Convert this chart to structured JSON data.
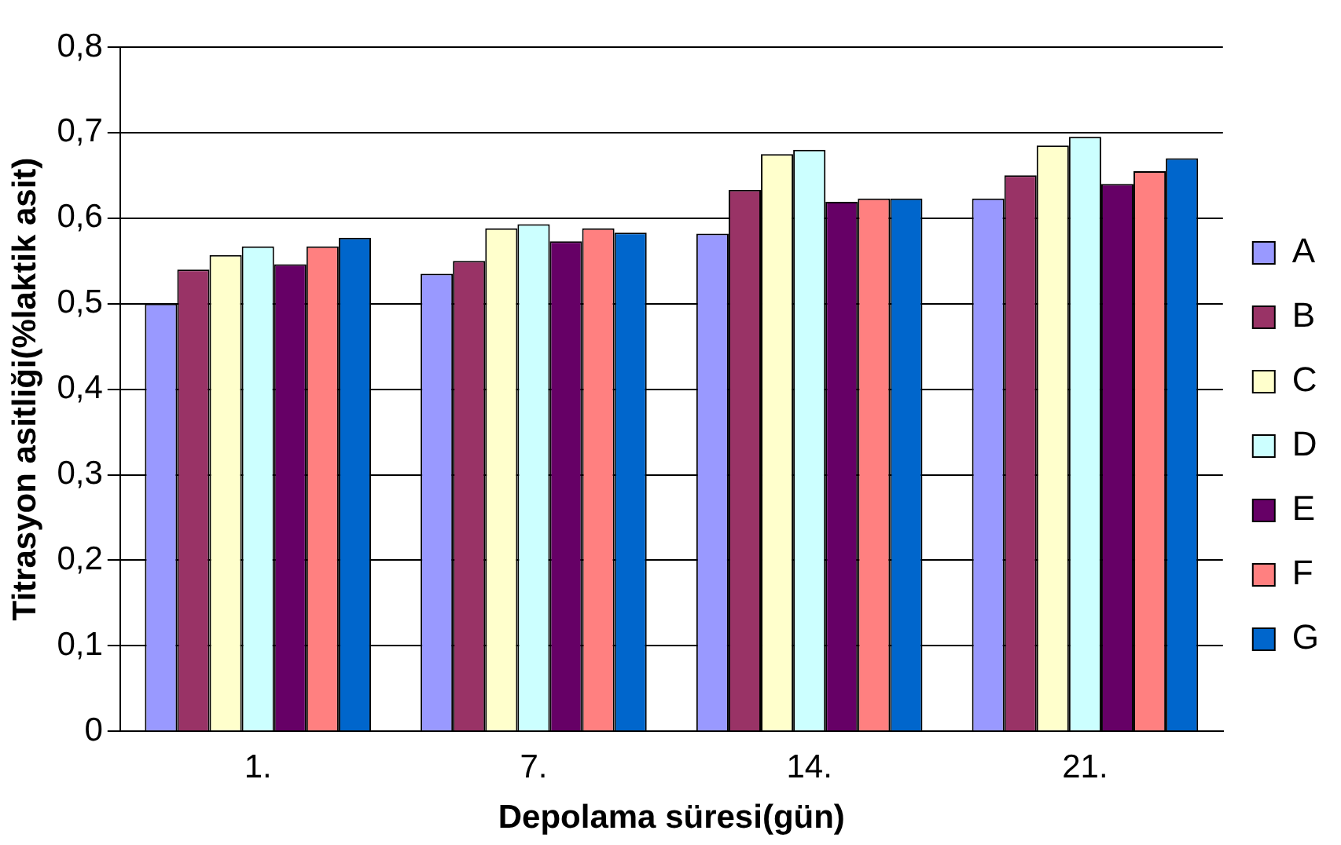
{
  "chart_data": {
    "type": "bar",
    "xlabel": "Depolama süresi(gün)",
    "ylabel": "Titrasyon asitliği(%laktik asit)",
    "categories": [
      "1.",
      "7.",
      "14.",
      "21."
    ],
    "series": [
      {
        "name": "A",
        "color": "#9999ff",
        "values": [
          0.5,
          0.535,
          0.582,
          0.623
        ]
      },
      {
        "name": "B",
        "color": "#993366",
        "values": [
          0.54,
          0.55,
          0.633,
          0.65
        ]
      },
      {
        "name": "C",
        "color": "#ffffcc",
        "values": [
          0.557,
          0.588,
          0.675,
          0.685
        ]
      },
      {
        "name": "D",
        "color": "#ccffff",
        "values": [
          0.567,
          0.593,
          0.68,
          0.695
        ]
      },
      {
        "name": "E",
        "color": "#660066",
        "values": [
          0.546,
          0.573,
          0.619,
          0.64
        ]
      },
      {
        "name": "F",
        "color": "#ff8080",
        "values": [
          0.567,
          0.588,
          0.623,
          0.655
        ]
      },
      {
        "name": "G",
        "color": "#0066cc",
        "values": [
          0.577,
          0.583,
          0.623,
          0.67
        ]
      }
    ],
    "ylim": [
      0,
      0.8
    ],
    "yticks": [
      {
        "value": 0,
        "label": "0"
      },
      {
        "value": 0.1,
        "label": "0,1"
      },
      {
        "value": 0.2,
        "label": "0,2"
      },
      {
        "value": 0.3,
        "label": "0,3"
      },
      {
        "value": 0.4,
        "label": "0,4"
      },
      {
        "value": 0.5,
        "label": "0,5"
      },
      {
        "value": 0.6,
        "label": "0,6"
      },
      {
        "value": 0.7,
        "label": "0,7"
      },
      {
        "value": 0.8,
        "label": "0,8"
      }
    ],
    "grid": "y",
    "legend": "right"
  }
}
